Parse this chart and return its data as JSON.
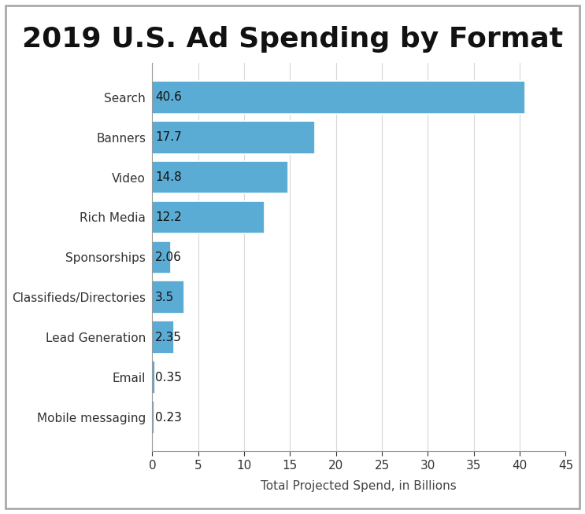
{
  "title": "2019 U.S. Ad Spending by Format",
  "categories": [
    "Mobile messaging",
    "Email",
    "Lead Generation",
    "Classifieds/Directories",
    "Sponsorships",
    "Rich Media",
    "Video",
    "Banners",
    "Search"
  ],
  "values": [
    0.23,
    0.35,
    2.35,
    3.5,
    2.06,
    12.2,
    14.8,
    17.7,
    40.6
  ],
  "labels": [
    "0.23",
    "0.35",
    "2.35",
    "3.5",
    "2.06",
    "12.2",
    "14.8",
    "17.7",
    "40.6"
  ],
  "bar_color": "#5BACD4",
  "background_color": "#FFFFFF",
  "xlabel": "Total Projected Spend, in Billions",
  "xlim": [
    0,
    45
  ],
  "xticks": [
    0,
    5,
    10,
    15,
    20,
    25,
    30,
    35,
    40,
    45
  ],
  "title_fontsize": 26,
  "label_fontsize": 11,
  "tick_fontsize": 11,
  "xlabel_fontsize": 11,
  "grid_color": "#D8D8D8",
  "border_color": "#AAAAAA",
  "bar_height": 0.82
}
